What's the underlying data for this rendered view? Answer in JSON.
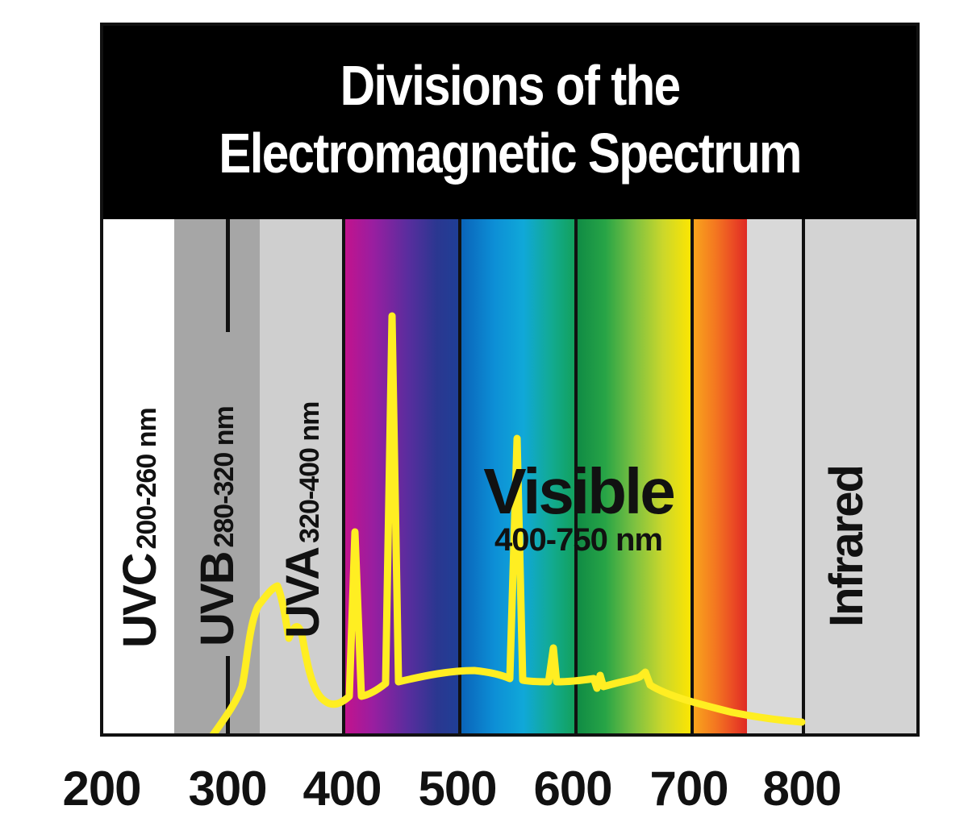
{
  "title": {
    "line1": "Divisions of the",
    "line2": "Electromagnetic Spectrum"
  },
  "regions": [
    {
      "name": "UVC",
      "range": "200-260 nm"
    },
    {
      "name": "UVB",
      "range": "280-320 nm"
    },
    {
      "name": "UVA",
      "range": "320-400 nm"
    },
    {
      "name": "Visible",
      "range": "400-750 nm"
    },
    {
      "name": "Infrared",
      "range": ""
    }
  ],
  "axis": {
    "unit": "nm",
    "ticks": [
      "200",
      "300",
      "400",
      "500",
      "600",
      "700",
      "800"
    ]
  },
  "colors": {
    "frame": "#111111",
    "title_bg": "#000000",
    "title_text": "#ffffff",
    "uvc_band": "#ffffff",
    "uvb_band": "#a6a6a6",
    "uva_band": "#cfcfcf",
    "infrared_band": "#d3d3d3",
    "emission_curve": "#ffee22"
  }
}
